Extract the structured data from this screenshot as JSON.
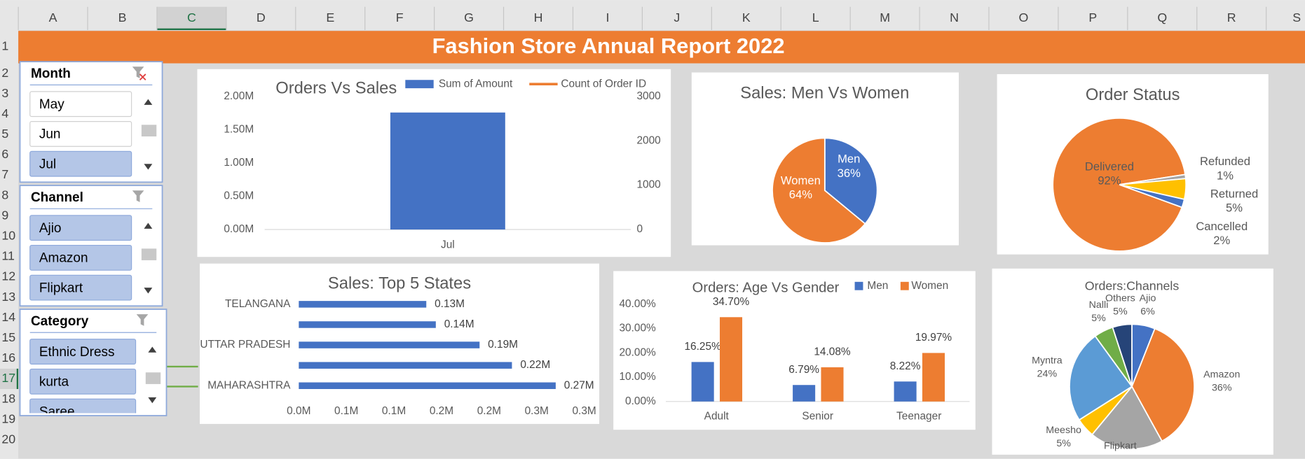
{
  "sheet": {
    "columns": [
      "A",
      "B",
      "C",
      "D",
      "E",
      "F",
      "G",
      "H",
      "I",
      "J",
      "K",
      "L",
      "M",
      "N",
      "O",
      "P",
      "Q",
      "R",
      "S"
    ],
    "rows": [
      1,
      2,
      3,
      4,
      5,
      6,
      7,
      8,
      9,
      10,
      11,
      12,
      13,
      14,
      15,
      16,
      17,
      18,
      19,
      20
    ],
    "selected_column": 2,
    "selected_row": 16
  },
  "title": "Fashion Store Annual Report 2022",
  "slicers": [
    {
      "title": "Month",
      "items": [
        "May",
        "Jun",
        "Jul"
      ],
      "selected": [
        false,
        false,
        true
      ]
    },
    {
      "title": "Channel",
      "items": [
        "Ajio",
        "Amazon",
        "Flipkart"
      ],
      "selected": [
        true,
        true,
        true
      ]
    },
    {
      "title": "Category",
      "items": [
        "Ethnic Dress",
        "kurta",
        "Saree"
      ],
      "selected": [
        true,
        true,
        true
      ]
    }
  ],
  "chart_data": [
    {
      "type": "bar",
      "title": "Orders Vs Sales",
      "categories": [
        "Jul"
      ],
      "series": [
        {
          "name": "Sum of Amount",
          "type": "bar",
          "color": "#4472c4",
          "values": [
            1760000
          ]
        },
        {
          "name": "Count of Order ID",
          "type": "line",
          "axis": "y2",
          "color": "#ed7d31",
          "values": [
            null
          ]
        }
      ],
      "ylim": [
        0,
        2000000
      ],
      "yticks": [
        {
          "value": 0,
          "label": "0.00M"
        },
        {
          "value": 500000,
          "label": "0.50M"
        },
        {
          "value": 1000000,
          "label": "1.00M"
        },
        {
          "value": 1500000,
          "label": "1.50M"
        },
        {
          "value": 2000000,
          "label": "2.00M"
        }
      ],
      "y2lim": [
        0,
        3000
      ],
      "y2ticks": [
        0,
        1000,
        2000,
        3000
      ],
      "legend": "top"
    },
    {
      "type": "pie",
      "title": "Sales: Men Vs Women",
      "categories": [
        "Men",
        "Women"
      ],
      "values": [
        36,
        64
      ],
      "value_labels": [
        "36%",
        "64%"
      ],
      "colors": [
        "#4472c4",
        "#ed7d31"
      ]
    },
    {
      "type": "pie",
      "title": "Order Status",
      "categories": [
        "Delivered",
        "Refunded",
        "Returned",
        "Cancelled"
      ],
      "values": [
        92,
        1,
        5,
        2
      ],
      "value_labels": [
        "92%",
        "1%",
        "5%",
        "2%"
      ],
      "colors": [
        "#ed7d31",
        "#a5a5a5",
        "#ffc000",
        "#4472c4"
      ]
    },
    {
      "type": "barh",
      "title": "Sales: Top 5 States",
      "categories": [
        "TELANGANA",
        null,
        "UTTAR PRADESH",
        null,
        "MAHARASHTRA"
      ],
      "values": [
        134000,
        144000,
        190000,
        224000,
        270000
      ],
      "value_labels": [
        "0.13M",
        "0.14M",
        "0.19M",
        "0.22M",
        "0.27M"
      ],
      "color": "#4472c4",
      "xlim": [
        0,
        300000
      ],
      "xticks": [
        {
          "value": 0,
          "label": "0.0M"
        },
        {
          "value": 50000,
          "label": "0.1M"
        },
        {
          "value": 100000,
          "label": "0.1M"
        },
        {
          "value": 150000,
          "label": "0.2M"
        },
        {
          "value": 200000,
          "label": "0.2M"
        },
        {
          "value": 250000,
          "label": "0.3M"
        },
        {
          "value": 300000,
          "label": "0.3M"
        }
      ]
    },
    {
      "type": "bar",
      "title": "Orders: Age Vs Gender",
      "categories": [
        "Adult",
        "Senior",
        "Teenager"
      ],
      "series": [
        {
          "name": "Men",
          "type": "bar",
          "color": "#4472c4",
          "values": [
            16.25,
            6.79,
            8.22
          ],
          "value_labels": [
            "16.25%",
            "6.79%",
            "8.22%"
          ]
        },
        {
          "name": "Women",
          "type": "bar",
          "color": "#ed7d31",
          "values": [
            34.7,
            14.08,
            19.97
          ],
          "value_labels": [
            "34.70%",
            "14.08%",
            "19.97%"
          ]
        }
      ],
      "ylim": [
        0,
        40
      ],
      "yticks": [
        {
          "value": 0,
          "label": "0.00%"
        },
        {
          "value": 10,
          "label": "10.00%"
        },
        {
          "value": 20,
          "label": "20.00%"
        },
        {
          "value": 30,
          "label": "30.00%"
        },
        {
          "value": 40,
          "label": "40.00%"
        }
      ],
      "legend": "top-right"
    },
    {
      "type": "pie",
      "title": "Orders:Channels",
      "categories": [
        "Ajio",
        "Amazon",
        "Flipkart",
        "Meesho",
        "Myntra",
        "Nalli",
        "Others"
      ],
      "values": [
        6,
        36,
        19,
        5,
        24,
        5,
        5
      ],
      "value_labels": [
        "6%",
        "36%",
        null,
        "5%",
        "24%",
        "5%",
        "5%"
      ],
      "colors": [
        "#4472c4",
        "#ed7d31",
        "#a5a5a5",
        "#ffc000",
        "#5b9bd5",
        "#70ad47",
        "#264478"
      ]
    }
  ]
}
